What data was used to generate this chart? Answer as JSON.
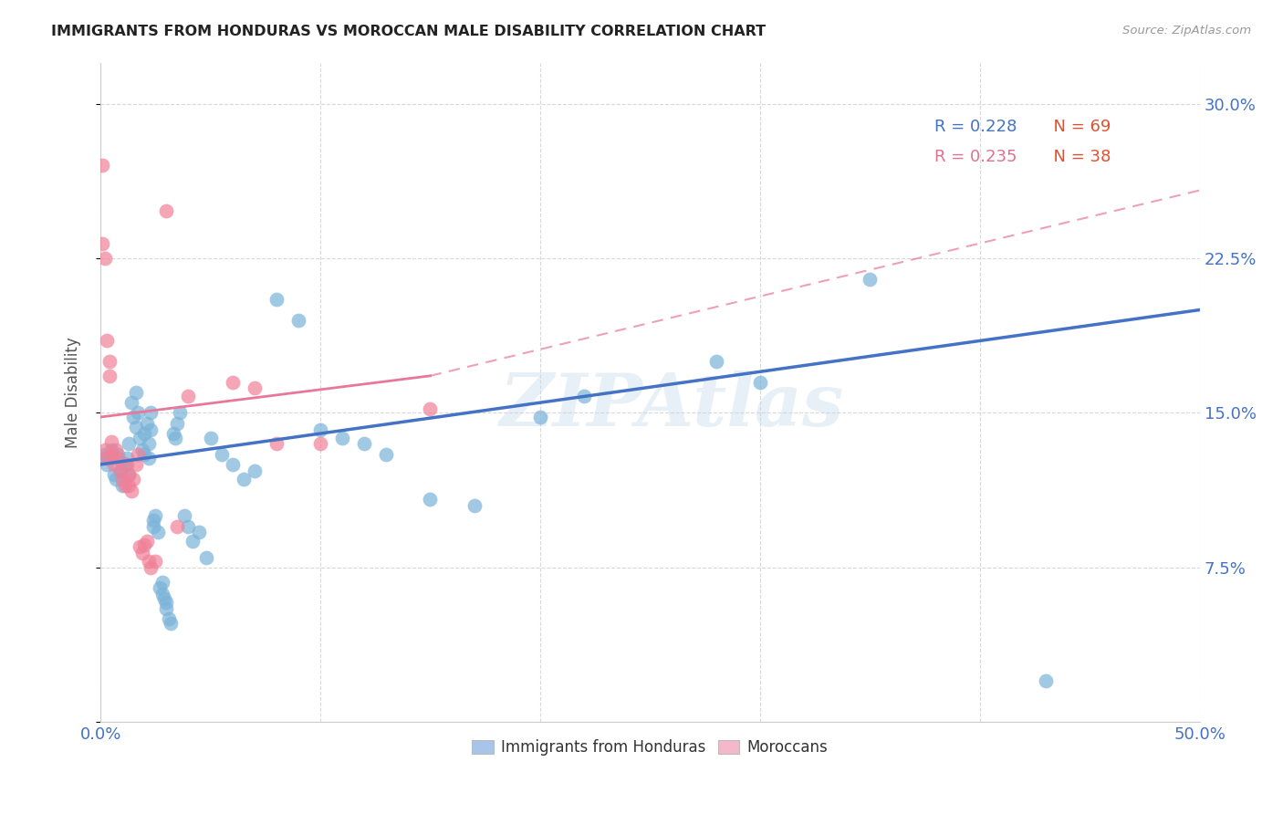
{
  "title": "IMMIGRANTS FROM HONDURAS VS MOROCCAN MALE DISABILITY CORRELATION CHART",
  "source": "Source: ZipAtlas.com",
  "ylabel": "Male Disability",
  "xlim": [
    0.0,
    0.5
  ],
  "ylim": [
    0.0,
    0.32
  ],
  "xticks": [
    0.0,
    0.1,
    0.2,
    0.3,
    0.4,
    0.5
  ],
  "xtick_labels": [
    "0.0%",
    "",
    "",
    "",
    "",
    "50.0%"
  ],
  "yticks": [
    0.0,
    0.075,
    0.15,
    0.225,
    0.3
  ],
  "ytick_labels": [
    "",
    "7.5%",
    "15.0%",
    "22.5%",
    "30.0%"
  ],
  "watermark": "ZIPAtlas",
  "blue_color": "#7ab3d8",
  "pink_color": "#f08098",
  "blue_line_color": "#4472c4",
  "pink_line_color": "#e8789a",
  "legend_blue_patch": "#a8c4e8",
  "legend_pink_patch": "#f4b8c8",
  "blue_scatter": [
    [
      0.001,
      0.128
    ],
    [
      0.002,
      0.13
    ],
    [
      0.003,
      0.125
    ],
    [
      0.004,
      0.128
    ],
    [
      0.005,
      0.132
    ],
    [
      0.006,
      0.12
    ],
    [
      0.007,
      0.118
    ],
    [
      0.008,
      0.13
    ],
    [
      0.009,
      0.122
    ],
    [
      0.01,
      0.115
    ],
    [
      0.01,
      0.126
    ],
    [
      0.011,
      0.124
    ],
    [
      0.012,
      0.128
    ],
    [
      0.013,
      0.135
    ],
    [
      0.013,
      0.12
    ],
    [
      0.014,
      0.155
    ],
    [
      0.015,
      0.148
    ],
    [
      0.016,
      0.16
    ],
    [
      0.016,
      0.143
    ],
    [
      0.017,
      0.15
    ],
    [
      0.018,
      0.138
    ],
    [
      0.019,
      0.132
    ],
    [
      0.02,
      0.14
    ],
    [
      0.02,
      0.13
    ],
    [
      0.021,
      0.145
    ],
    [
      0.022,
      0.128
    ],
    [
      0.022,
      0.135
    ],
    [
      0.023,
      0.15
    ],
    [
      0.023,
      0.142
    ],
    [
      0.024,
      0.095
    ],
    [
      0.024,
      0.098
    ],
    [
      0.025,
      0.1
    ],
    [
      0.026,
      0.092
    ],
    [
      0.027,
      0.065
    ],
    [
      0.028,
      0.062
    ],
    [
      0.028,
      0.068
    ],
    [
      0.029,
      0.06
    ],
    [
      0.03,
      0.055
    ],
    [
      0.03,
      0.058
    ],
    [
      0.031,
      0.05
    ],
    [
      0.032,
      0.048
    ],
    [
      0.033,
      0.14
    ],
    [
      0.034,
      0.138
    ],
    [
      0.035,
      0.145
    ],
    [
      0.036,
      0.15
    ],
    [
      0.038,
      0.1
    ],
    [
      0.04,
      0.095
    ],
    [
      0.042,
      0.088
    ],
    [
      0.045,
      0.092
    ],
    [
      0.048,
      0.08
    ],
    [
      0.05,
      0.138
    ],
    [
      0.055,
      0.13
    ],
    [
      0.06,
      0.125
    ],
    [
      0.065,
      0.118
    ],
    [
      0.07,
      0.122
    ],
    [
      0.08,
      0.205
    ],
    [
      0.09,
      0.195
    ],
    [
      0.1,
      0.142
    ],
    [
      0.11,
      0.138
    ],
    [
      0.12,
      0.135
    ],
    [
      0.13,
      0.13
    ],
    [
      0.15,
      0.108
    ],
    [
      0.17,
      0.105
    ],
    [
      0.2,
      0.148
    ],
    [
      0.22,
      0.158
    ],
    [
      0.28,
      0.175
    ],
    [
      0.3,
      0.165
    ],
    [
      0.35,
      0.215
    ],
    [
      0.43,
      0.02
    ]
  ],
  "pink_scatter": [
    [
      0.001,
      0.27
    ],
    [
      0.001,
      0.232
    ],
    [
      0.002,
      0.225
    ],
    [
      0.003,
      0.185
    ],
    [
      0.004,
      0.175
    ],
    [
      0.004,
      0.168
    ],
    [
      0.005,
      0.136
    ],
    [
      0.005,
      0.13
    ],
    [
      0.006,
      0.125
    ],
    [
      0.007,
      0.132
    ],
    [
      0.008,
      0.128
    ],
    [
      0.009,
      0.122
    ],
    [
      0.01,
      0.118
    ],
    [
      0.011,
      0.115
    ],
    [
      0.012,
      0.125
    ],
    [
      0.013,
      0.12
    ],
    [
      0.013,
      0.115
    ],
    [
      0.014,
      0.112
    ],
    [
      0.015,
      0.118
    ],
    [
      0.016,
      0.125
    ],
    [
      0.017,
      0.13
    ],
    [
      0.018,
      0.085
    ],
    [
      0.019,
      0.082
    ],
    [
      0.02,
      0.086
    ],
    [
      0.021,
      0.088
    ],
    [
      0.022,
      0.078
    ],
    [
      0.023,
      0.075
    ],
    [
      0.025,
      0.078
    ],
    [
      0.03,
      0.248
    ],
    [
      0.035,
      0.095
    ],
    [
      0.04,
      0.158
    ],
    [
      0.06,
      0.165
    ],
    [
      0.07,
      0.162
    ],
    [
      0.08,
      0.135
    ],
    [
      0.1,
      0.135
    ],
    [
      0.15,
      0.152
    ],
    [
      0.002,
      0.132
    ],
    [
      0.003,
      0.128
    ]
  ],
  "blue_trendline": [
    [
      0.0,
      0.125
    ],
    [
      0.5,
      0.2
    ]
  ],
  "pink_trendline_solid": [
    [
      0.0,
      0.148
    ],
    [
      0.15,
      0.168
    ]
  ],
  "pink_trendline_dashed": [
    [
      0.15,
      0.168
    ],
    [
      0.5,
      0.258
    ]
  ]
}
